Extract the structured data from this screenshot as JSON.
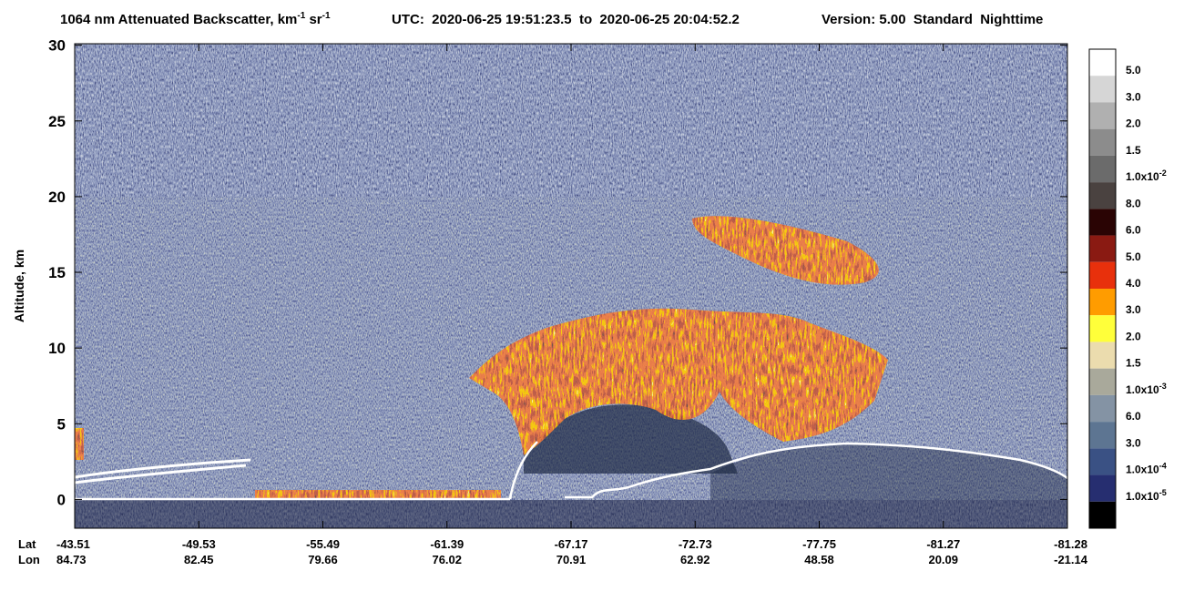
{
  "chart_data": {
    "type": "heatmap",
    "title": {
      "main": "1064 nm Attenuated Backscatter, km",
      "sup1": "-1",
      "unit2": " sr",
      "sup2": "-1",
      "utc": "UTC:  2020-06-25 19:51:23.5  to  2020-06-25 20:04:52.2",
      "version": "Version: 5.00  Standard  Nighttime"
    },
    "y_label": "Altitude, km",
    "ylim": [
      -1.9,
      30.1
    ],
    "yticks": [
      0,
      5,
      10,
      15,
      20,
      25,
      30
    ],
    "x_rows": [
      {
        "name": "Lat",
        "values": [
          -43.51,
          -49.53,
          -55.49,
          -61.39,
          -67.17,
          -72.73,
          -77.75,
          -81.27,
          -81.28
        ]
      },
      {
        "name": "Lon",
        "values": [
          84.73,
          82.45,
          79.66,
          76.02,
          70.91,
          62.92,
          48.58,
          20.09,
          -21.14
        ]
      }
    ],
    "colorbar": {
      "colors": [
        "#ffffff",
        "#d6d6d6",
        "#b0b0b0",
        "#8c8c8c",
        "#6b6b6b",
        "#4a4240",
        "#2a0404",
        "#8a1a12",
        "#e8300c",
        "#ff9c00",
        "#ffff3a",
        "#ebdcae",
        "#a9a99b",
        "#8493a4",
        "#5d7592",
        "#3a5184",
        "#262e70",
        "#000000"
      ],
      "ticks": [
        {
          "text": "5.0"
        },
        {
          "text": "3.0"
        },
        {
          "text": "2.0"
        },
        {
          "text": "1.5"
        },
        {
          "text": "1.0x10",
          "sup": "-2"
        },
        {
          "text": "8.0"
        },
        {
          "text": "6.0"
        },
        {
          "text": "5.0"
        },
        {
          "text": "4.0"
        },
        {
          "text": "3.0"
        },
        {
          "text": "2.0"
        },
        {
          "text": "1.5"
        },
        {
          "text": "1.0x10",
          "sup": "-3"
        },
        {
          "text": "6.0"
        },
        {
          "text": "3.0"
        },
        {
          "text": "1.0x10",
          "sup": "-4"
        },
        {
          "text": "1.0x10",
          "sup": "-5"
        }
      ]
    }
  }
}
